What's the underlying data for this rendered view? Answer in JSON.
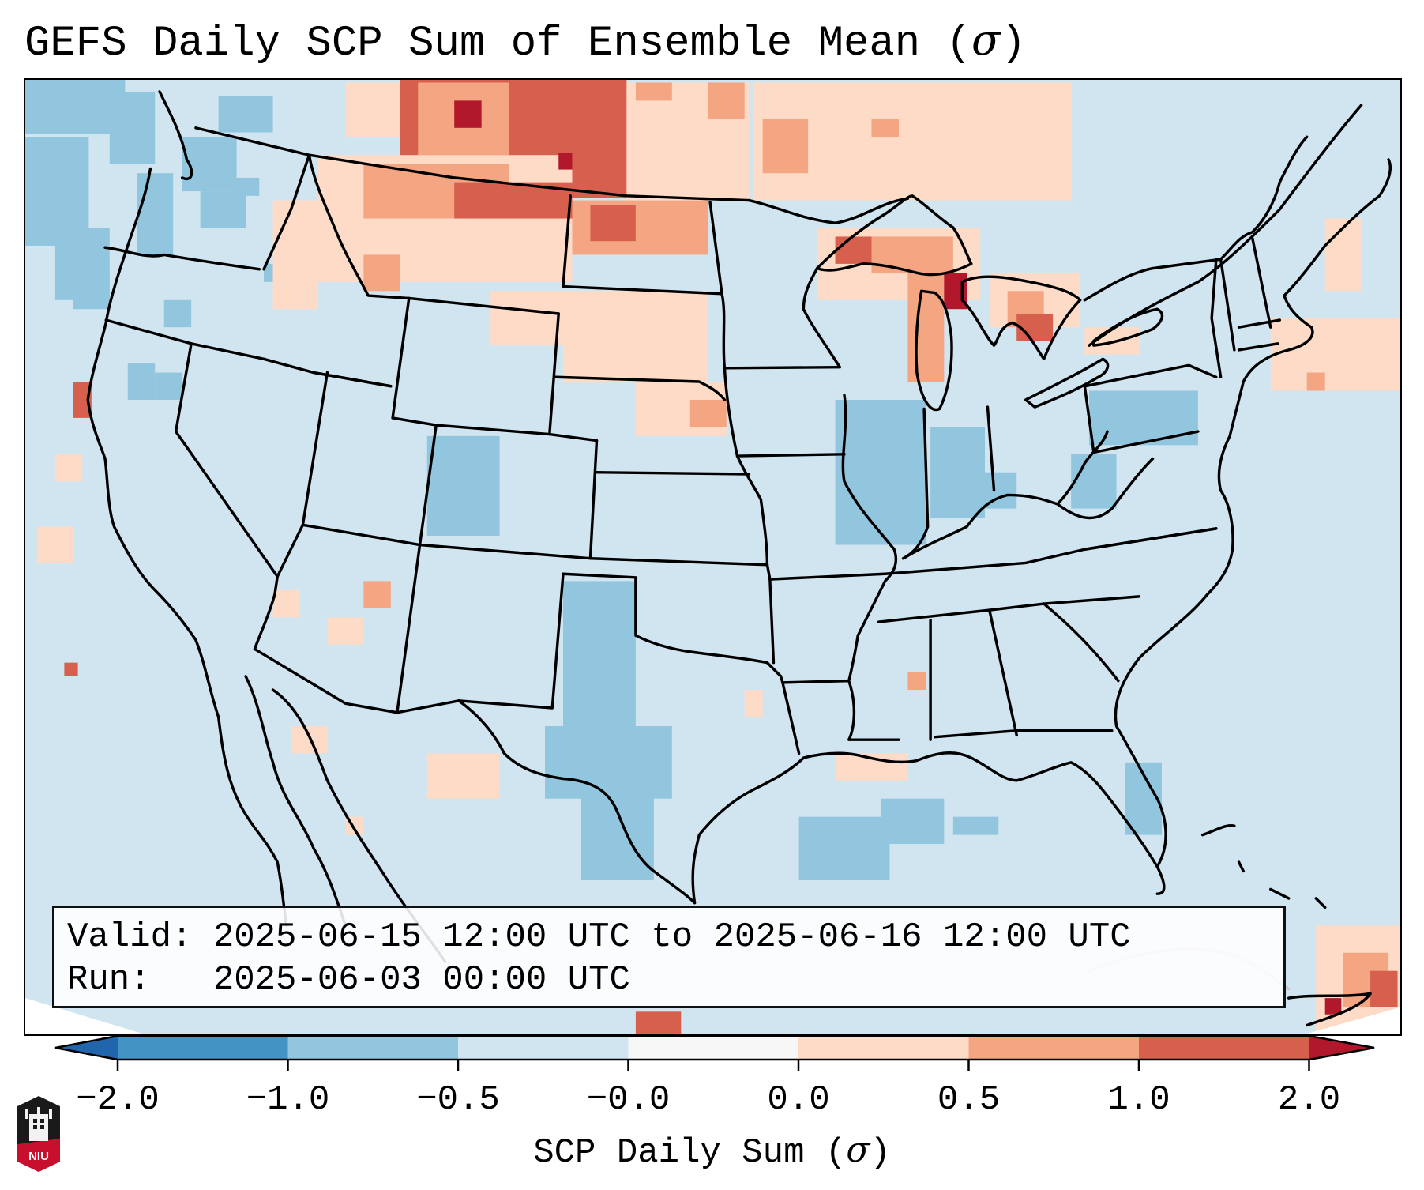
{
  "title": {
    "text": "GEFS Daily SCP Sum of Ensemble Mean (",
    "symbol": "σ",
    "close": ")"
  },
  "info_box": {
    "valid_label": "Valid:",
    "valid_value": "2025-06-15 12:00 UTC to 2025-06-16 12:00 UTC",
    "run_label": "Run:",
    "run_value": "2025-06-03 00:00 UTC"
  },
  "colorbar": {
    "label_text": "SCP Daily Sum (",
    "label_symbol": "σ",
    "label_close": ")",
    "tick_labels": [
      "−2.0",
      "−1.0",
      "−0.5",
      "−0.0",
      "0.0",
      "0.5",
      "1.0",
      "2.0"
    ],
    "bins": [
      {
        "from": "-inf",
        "to": -2.0,
        "color": "#2166ac"
      },
      {
        "from": -2.0,
        "to": -1.0,
        "color": "#4393c3"
      },
      {
        "from": -1.0,
        "to": -0.5,
        "color": "#92c5de"
      },
      {
        "from": -0.5,
        "to": -0.0,
        "color": "#d1e5f0"
      },
      {
        "from": -0.0,
        "to": 0.0,
        "color": "#f7f7f7"
      },
      {
        "from": 0.0,
        "to": 0.5,
        "color": "#fddbc7"
      },
      {
        "from": 0.5,
        "to": 1.0,
        "color": "#f4a582"
      },
      {
        "from": 1.0,
        "to": 2.0,
        "color": "#d6604d"
      },
      {
        "from": 2.0,
        "to": "inf",
        "color": "#b2182b"
      }
    ],
    "extend": "both"
  },
  "map": {
    "region": "CONUS",
    "variable": "SCP daily sum standardized anomaly",
    "background_color": "#d1e5f0",
    "boundary_color": "#000000"
  },
  "logo": {
    "name": "niu-logo",
    "text": "NIU"
  }
}
